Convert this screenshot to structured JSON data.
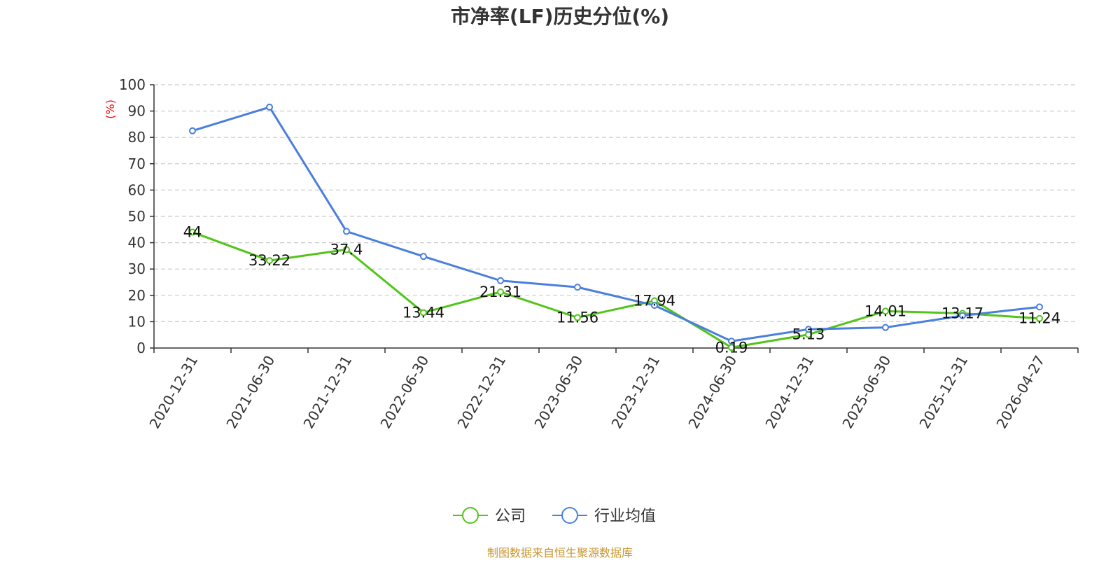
{
  "chart_data": {
    "type": "line",
    "title": "市净率(LF)历史分位(%)",
    "unit_label": "(%)",
    "categories": [
      "2020-12-31",
      "2021-06-30",
      "2021-12-31",
      "2022-06-30",
      "2022-12-31",
      "2023-06-30",
      "2023-12-31",
      "2024-06-30",
      "2024-12-31",
      "2025-06-30",
      "2025-12-31",
      "2026-04-27"
    ],
    "ylim": [
      0,
      100
    ],
    "yticks": [
      0,
      10,
      20,
      30,
      40,
      50,
      60,
      70,
      80,
      90,
      100
    ],
    "grid": true,
    "legend_position": "bottom-center",
    "series": [
      {
        "name": "公司",
        "color": "#52c41a",
        "show_labels": true,
        "values": [
          44,
          33.22,
          37.4,
          13.44,
          21.31,
          11.56,
          17.94,
          0.19,
          5.13,
          14.01,
          13.17,
          11.24
        ]
      },
      {
        "name": "行业均值",
        "color": "#4a7fdc",
        "show_labels": false,
        "values": [
          82.5,
          91.5,
          44.3,
          34.8,
          25.6,
          23.1,
          16.2,
          2.6,
          7.1,
          7.8,
          12.3,
          15.6
        ]
      }
    ]
  },
  "footer": {
    "source": "制图数据来自恒生聚源数据库",
    "source_color": "#c8962e"
  }
}
